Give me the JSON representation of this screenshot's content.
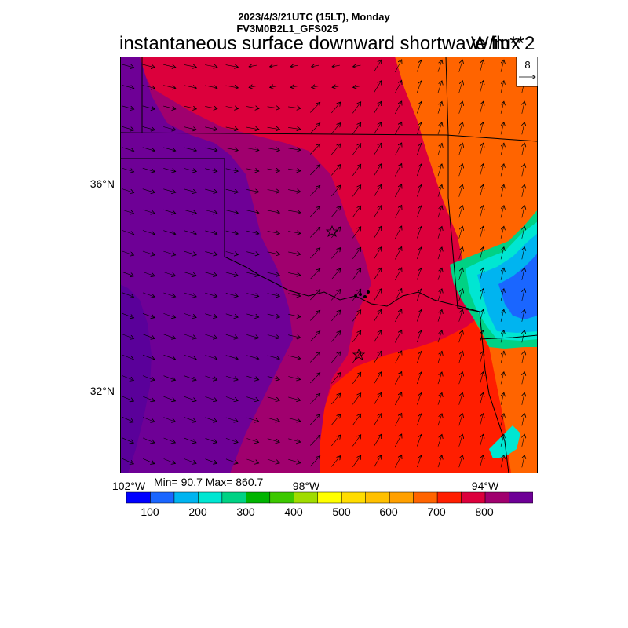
{
  "header": {
    "line1": "2023/4/3/21UTC (15LT), Monday",
    "line2": "FV3M0B2L1_GFS025",
    "title": "instantaneous surface downward shortwave flux",
    "units": "W/m**2"
  },
  "axes": {
    "lat_labels": [
      "36°N",
      "32°N"
    ],
    "lon_labels": [
      "102°W",
      "98°W",
      "94°W"
    ]
  },
  "stats": {
    "text": "Min= 90.7 Max= 860.7"
  },
  "vector_legend": {
    "value": "8"
  },
  "colorbar": {
    "labels": [
      "100",
      "200",
      "300",
      "400",
      "500",
      "600",
      "700",
      "800"
    ],
    "colors": [
      "#0000ff",
      "#1a66ff",
      "#00b4f0",
      "#00e6d2",
      "#00d284",
      "#00b400",
      "#3cc800",
      "#a0dc00",
      "#ffff00",
      "#ffdc00",
      "#ffc000",
      "#ffa000",
      "#ff6400",
      "#ff1e00",
      "#dc003c",
      "#a0006e",
      "#6e0096"
    ]
  },
  "colors": {
    "field_low": "#6e0096",
    "field_mid": "#a0006e",
    "field_high": "#dc003c",
    "field_top": "#ff1e00",
    "field_east": "#ff6400",
    "cloud_a": "#00b4f0",
    "cloud_b": "#1a66ff",
    "cloud_c": "#00e6d2",
    "cloud_d": "#00d284"
  }
}
